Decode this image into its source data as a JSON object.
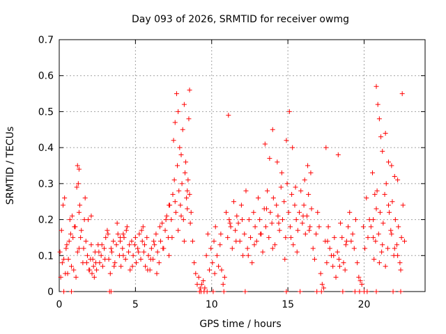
{
  "chart_data": {
    "type": "scatter",
    "title": "Day 093 of 2026, SRMTID for receiver owmg",
    "xlabel": "GPS time / hours",
    "ylabel": "SRMTID / TECUs",
    "xlim": [
      0,
      24
    ],
    "ylim": [
      0,
      0.7
    ],
    "x_ticks": [
      0,
      5,
      10,
      15,
      20
    ],
    "x_tick_labels": [
      "0",
      "5",
      "10",
      "15",
      "20"
    ],
    "y_ticks": [
      0,
      0.1,
      0.2,
      0.3,
      0.4,
      0.5,
      0.6,
      0.7
    ],
    "y_tick_labels": [
      "0",
      "0.1",
      "0.2",
      "0.3",
      "0.4",
      "0.5",
      "0.6",
      "0.7"
    ],
    "grid": true,
    "marker": "+",
    "color": "#ff0000",
    "series": [
      {
        "name": "SRMTID",
        "x": [
          0.05,
          0.15,
          0.25,
          0.3,
          0.35,
          0.45,
          0.55,
          0.65,
          0.75,
          0.85,
          0.95,
          1.05,
          1.15,
          1.25,
          1.3,
          1.35,
          1.45,
          1.55,
          1.65,
          1.75,
          1.85,
          1.95,
          2.05,
          2.15,
          2.25,
          2.35,
          2.45,
          2.55,
          2.65,
          2.75,
          2.85,
          2.95,
          3.05,
          3.15,
          3.25,
          3.35,
          3.45,
          3.55,
          3.65,
          3.75,
          3.85,
          3.95,
          4.05,
          4.15,
          4.25,
          4.35,
          4.45,
          4.55,
          4.65,
          4.75,
          4.85,
          4.95,
          5.05,
          5.15,
          5.25,
          5.35,
          5.45,
          5.55,
          5.65,
          5.75,
          5.85,
          5.95,
          6.05,
          6.15,
          6.25,
          6.35,
          6.45,
          6.55,
          6.65,
          6.75,
          6.85,
          6.95,
          7.05,
          7.15,
          7.25,
          7.35,
          7.45,
          7.55,
          7.65,
          7.75,
          7.85,
          7.95,
          8.05,
          8.15,
          8.25,
          8.35,
          8.45,
          8.55,
          8.65,
          8.75,
          8.85,
          8.95,
          9.05,
          9.15,
          9.25,
          9.35,
          9.45,
          9.55,
          9.65,
          9.75,
          9.85,
          9.95,
          10.05,
          10.15,
          10.25,
          10.35,
          10.45,
          10.55,
          10.65,
          10.75,
          10.85,
          10.95,
          11.05,
          11.15,
          11.25,
          11.35,
          11.45,
          11.55,
          11.65,
          11.75,
          11.85,
          11.95,
          12.05,
          12.15,
          12.25,
          12.35,
          12.45,
          12.55,
          12.65,
          12.75,
          12.85,
          12.95,
          13.05,
          13.15,
          13.25,
          13.35,
          13.45,
          13.55,
          13.65,
          13.75,
          13.85,
          13.95,
          14.05,
          14.15,
          14.25,
          14.35,
          14.45,
          14.55,
          14.65,
          14.75,
          14.85,
          14.95,
          15.05,
          15.15,
          15.25,
          15.35,
          15.45,
          15.55,
          15.65,
          15.75,
          15.85,
          15.95,
          16.05,
          16.15,
          16.25,
          16.35,
          16.45,
          16.55,
          16.65,
          16.75,
          16.85,
          16.95,
          17.05,
          17.15,
          17.25,
          17.35,
          17.45,
          17.55,
          17.65,
          17.75,
          17.85,
          17.95,
          18.05,
          18.15,
          18.25,
          18.35,
          18.45,
          18.55,
          18.65,
          18.75,
          18.85,
          18.95,
          19.05,
          19.15,
          19.25,
          19.35,
          19.45,
          19.55,
          19.65,
          19.75,
          19.85,
          19.95,
          20.05,
          20.15,
          20.25,
          20.35,
          20.45,
          20.55,
          20.65,
          20.75,
          20.85,
          20.95,
          21.05,
          21.15,
          21.25,
          21.35,
          21.45,
          21.55,
          21.65,
          21.75,
          21.85,
          21.95,
          22.05,
          22.15,
          22.25,
          22.35,
          22.45,
          22.55,
          22.65,
          0.1,
          0.2,
          0.4,
          0.5,
          0.6,
          0.7,
          0.8,
          0.9,
          1.0,
          1.1,
          1.2,
          1.3,
          1.4,
          1.6,
          1.7,
          1.8,
          1.9,
          2.0,
          2.1,
          2.2,
          2.3,
          2.4,
          2.6,
          2.8,
          3.0,
          3.2,
          3.4,
          3.6,
          3.8,
          4.0,
          4.2,
          4.4,
          4.6,
          4.8,
          5.0,
          5.2,
          5.4,
          5.6,
          5.8,
          6.0,
          6.2,
          6.4,
          6.6,
          6.8,
          7.0,
          7.2,
          7.4,
          7.6,
          7.8,
          8.0,
          8.2,
          8.4,
          8.6,
          10.2,
          10.6,
          11.2,
          11.6,
          12.0,
          12.4,
          12.8,
          13.2,
          13.6,
          14.0,
          14.4,
          14.8,
          15.2,
          15.6,
          16.0,
          16.4,
          17.6,
          18.0,
          18.4,
          18.8,
          20.6,
          20.8,
          21.0,
          21.2,
          21.4,
          21.6,
          21.8,
          22.0,
          22.2,
          22.4,
          1.2,
          1.3,
          2.1,
          4.0,
          4.2,
          5.5,
          7.2,
          7.5,
          7.6,
          7.7,
          7.8,
          7.9,
          8.0,
          8.1,
          8.2,
          8.3,
          8.4,
          8.5,
          8.55,
          11.1,
          13.5,
          13.8,
          14.0,
          14.3,
          14.6,
          14.9,
          15.1,
          15.3,
          15.5,
          16.1,
          16.3,
          16.5,
          17.5,
          18.3,
          20.6,
          20.7,
          20.8,
          20.9,
          21.0,
          21.1,
          21.2,
          21.4,
          21.6,
          21.8,
          22.0,
          22.2,
          22.5,
          0.3,
          0.8,
          3.3,
          3.4,
          9.2,
          9.3,
          9.5,
          9.7,
          10.1,
          10.8,
          12.2,
          14.9,
          15.8,
          16.9,
          17.2,
          18.6,
          19.4,
          19.7,
          20.0,
          20.2,
          20.8,
          21.9,
          22.4
        ],
        "y": [
          0.11,
          0.17,
          0.24,
          0.09,
          0.26,
          0.12,
          0.05,
          0.14,
          0.16,
          0.21,
          0.06,
          0.18,
          0.29,
          0.3,
          0.12,
          0.24,
          0.17,
          0.08,
          0.2,
          0.14,
          0.1,
          0.06,
          0.09,
          0.05,
          0.07,
          0.11,
          0.06,
          0.13,
          0.08,
          0.1,
          0.07,
          0.12,
          0.15,
          0.17,
          0.09,
          0.05,
          0.11,
          0.14,
          0.08,
          0.13,
          0.16,
          0.1,
          0.07,
          0.12,
          0.15,
          0.09,
          0.18,
          0.11,
          0.06,
          0.14,
          0.1,
          0.13,
          0.08,
          0.12,
          0.16,
          0.09,
          0.14,
          0.11,
          0.07,
          0.15,
          0.1,
          0.06,
          0.12,
          0.09,
          0.13,
          0.16,
          0.11,
          0.08,
          0.14,
          0.19,
          0.12,
          0.17,
          0.21,
          0.15,
          0.24,
          0.2,
          0.27,
          0.31,
          0.22,
          0.35,
          0.28,
          0.24,
          0.3,
          0.2,
          0.33,
          0.26,
          0.31,
          0.27,
          0.22,
          0.14,
          0.08,
          0.05,
          0.02,
          0.04,
          0.01,
          0.02,
          0.03,
          0.01,
          0.1,
          0.16,
          0.06,
          0.12,
          0.08,
          0.14,
          0.18,
          0.1,
          0.07,
          0.13,
          0.06,
          0.02,
          0.04,
          0.22,
          0.15,
          0.2,
          0.18,
          0.12,
          0.25,
          0.17,
          0.21,
          0.19,
          0.14,
          0.24,
          0.1,
          0.16,
          0.28,
          0.12,
          0.2,
          0.15,
          0.08,
          0.22,
          0.18,
          0.14,
          0.26,
          0.2,
          0.16,
          0.11,
          0.23,
          0.18,
          0.28,
          0.15,
          0.22,
          0.19,
          0.26,
          0.13,
          0.24,
          0.21,
          0.17,
          0.29,
          0.2,
          0.25,
          0.15,
          0.3,
          0.22,
          0.18,
          0.27,
          0.13,
          0.24,
          0.2,
          0.17,
          0.22,
          0.28,
          0.19,
          0.24,
          0.16,
          0.21,
          0.27,
          0.18,
          0.23,
          0.12,
          0.09,
          0.16,
          0.22,
          0.18,
          0.05,
          0.02,
          0.01,
          0.14,
          0.08,
          0.18,
          0.12,
          0.1,
          0.07,
          0.15,
          0.04,
          0.11,
          0.09,
          0.19,
          0.15,
          0.08,
          0.06,
          0.14,
          0.18,
          0.22,
          0.14,
          0.16,
          0.12,
          0.2,
          0.08,
          0.04,
          0.03,
          0.02,
          0.18,
          0.12,
          0.26,
          0.15,
          0.2,
          0.18,
          0.33,
          0.09,
          0.14,
          0.28,
          0.16,
          0.22,
          0.11,
          0.19,
          0.27,
          0.3,
          0.12,
          0.22,
          0.17,
          0.25,
          0.1,
          0.2,
          0.13,
          0.18,
          0.08,
          0.15,
          0.24,
          0.14,
          0.04,
          0.08,
          0.05,
          0.13,
          0.09,
          0.2,
          0.07,
          0.15,
          0.18,
          0.04,
          0.11,
          0.22,
          0.15,
          0.12,
          0.26,
          0.08,
          0.2,
          0.06,
          0.13,
          0.09,
          0.04,
          0.08,
          0.11,
          0.13,
          0.09,
          0.16,
          0.12,
          0.07,
          0.19,
          0.14,
          0.1,
          0.17,
          0.13,
          0.07,
          0.15,
          0.11,
          0.17,
          0.13,
          0.06,
          0.09,
          0.14,
          0.05,
          0.18,
          0.12,
          0.2,
          0.1,
          0.15,
          0.25,
          0.17,
          0.21,
          0.14,
          0.23,
          0.19,
          0.05,
          0.16,
          0.19,
          0.14,
          0.2,
          0.1,
          0.13,
          0.16,
          0.23,
          0.12,
          0.19,
          0.09,
          0.15,
          0.11,
          0.21,
          0.17,
          0.14,
          0.1,
          0.07,
          0.13,
          0.15,
          0.23,
          0.08,
          0.13,
          0.07,
          0.24,
          0.16,
          0.12,
          0.1,
          0.06,
          0.35,
          0.34,
          0.21,
          0.15,
          0.16,
          0.18,
          0.24,
          0.42,
          0.47,
          0.55,
          0.5,
          0.4,
          0.38,
          0.45,
          0.52,
          0.36,
          0.28,
          0.48,
          0.56,
          0.49,
          0.41,
          0.37,
          0.45,
          0.36,
          0.33,
          0.42,
          0.5,
          0.4,
          0.29,
          0.31,
          0.35,
          0.33,
          0.4,
          0.38,
          0.2,
          0.27,
          0.57,
          0.52,
          0.48,
          0.43,
          0.39,
          0.44,
          0.36,
          0.35,
          0.32,
          0.31,
          0.55,
          0,
          0,
          0,
          0,
          0,
          0,
          0,
          0,
          0,
          0,
          0,
          0,
          0,
          0,
          0,
          0,
          0,
          0,
          0,
          0,
          0,
          0,
          0
        ]
      }
    ]
  }
}
